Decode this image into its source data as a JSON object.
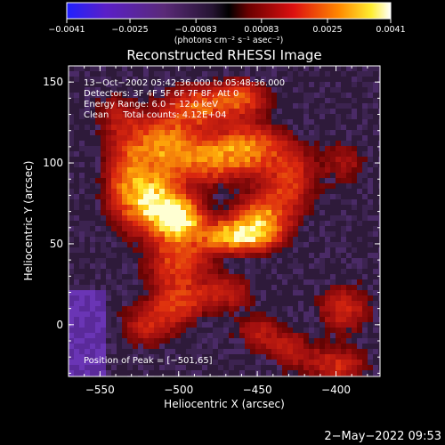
{
  "chart_data": {
    "type": "heatmap",
    "title": "Reconstructed RHESSI Image",
    "xlabel": "Heliocentric X (arcsec)",
    "ylabel": "Heliocentric Y (arcsec)",
    "xlim": [
      -570,
      -372
    ],
    "ylim": [
      -32,
      160
    ],
    "x_ticks": [
      {
        "value": -550,
        "label": "−550"
      },
      {
        "value": -500,
        "label": "−500"
      },
      {
        "value": -450,
        "label": "−450"
      },
      {
        "value": -400,
        "label": "−400"
      }
    ],
    "y_ticks": [
      {
        "value": 0,
        "label": "0"
      },
      {
        "value": 50,
        "label": "50"
      },
      {
        "value": 100,
        "label": "100"
      },
      {
        "value": 150,
        "label": "150"
      }
    ],
    "colorbar": {
      "min": -0.0041,
      "max": 0.0041,
      "colormap": "purple-blue-black-red-yellow-white",
      "ticks": [
        {
          "value": -0.0041,
          "label": "−0.0041"
        },
        {
          "value": -0.0025,
          "label": "−0.0025"
        },
        {
          "value": -0.00083,
          "label": "−0.00083"
        },
        {
          "value": 0.00083,
          "label": "0.00083"
        },
        {
          "value": 0.0025,
          "label": "0.0025"
        },
        {
          "value": 0.0041,
          "label": "0.0041"
        }
      ],
      "unit_label": "(photons cm⁻² s⁻¹ asec⁻²)"
    },
    "annotations": [
      "13−Oct−2002 05:42:36.000 to 05:48:36.000",
      "Detectors: 3F 4F 5F 6F 7F 8F, Att 0",
      "Energy Range: 6.0 − 12.0 keV",
      "Clean     Total counts: 4.12E+04"
    ],
    "peak_label": "Position of Peak = [−501,65]",
    "peak": {
      "x": -501,
      "y": 65,
      "value": 0.0041
    },
    "sources": [
      {
        "x": -501,
        "y": 65,
        "amplitude": 1.0,
        "sx": 11,
        "sy": 9
      },
      {
        "x": -515,
        "y": 78,
        "amplitude": 0.8,
        "sx": 12,
        "sy": 12
      },
      {
        "x": -463,
        "y": 55,
        "amplitude": 0.85,
        "sx": 16,
        "sy": 7
      },
      {
        "x": -448,
        "y": 66,
        "amplitude": 0.6,
        "sx": 12,
        "sy": 10
      },
      {
        "x": -510,
        "y": 112,
        "amplitude": 0.65,
        "sx": 14,
        "sy": 12
      },
      {
        "x": -480,
        "y": 102,
        "amplitude": 0.6,
        "sx": 16,
        "sy": 10
      },
      {
        "x": -455,
        "y": 110,
        "amplitude": 0.55,
        "sx": 14,
        "sy": 10
      },
      {
        "x": -488,
        "y": 135,
        "amplitude": 0.55,
        "sx": 14,
        "sy": 9
      },
      {
        "x": -460,
        "y": 140,
        "amplitude": 0.5,
        "sx": 12,
        "sy": 8
      },
      {
        "x": -533,
        "y": 90,
        "amplitude": 0.5,
        "sx": 10,
        "sy": 20
      },
      {
        "x": -430,
        "y": 90,
        "amplitude": 0.45,
        "sx": 12,
        "sy": 16
      },
      {
        "x": -500,
        "y": 40,
        "amplitude": 0.5,
        "sx": 14,
        "sy": 10
      },
      {
        "x": -500,
        "y": 15,
        "amplitude": 0.45,
        "sx": 12,
        "sy": 10
      },
      {
        "x": -520,
        "y": 0,
        "amplitude": 0.35,
        "sx": 12,
        "sy": 10
      },
      {
        "x": -470,
        "y": 20,
        "amplitude": 0.35,
        "sx": 12,
        "sy": 8
      },
      {
        "x": -395,
        "y": 10,
        "amplitude": 0.4,
        "sx": 12,
        "sy": 10
      },
      {
        "x": -400,
        "y": -25,
        "amplitude": 0.4,
        "sx": 14,
        "sy": 8
      },
      {
        "x": -430,
        "y": -15,
        "amplitude": 0.3,
        "sx": 10,
        "sy": 8
      },
      {
        "x": -450,
        "y": -5,
        "amplitude": 0.3,
        "sx": 10,
        "sy": 8
      },
      {
        "x": -395,
        "y": 100,
        "amplitude": 0.25,
        "sx": 10,
        "sy": 10
      },
      {
        "x": -540,
        "y": 130,
        "amplitude": 0.25,
        "sx": 10,
        "sy": 10
      }
    ]
  },
  "footer": {
    "timestamp": "2−May−2022 09:53"
  }
}
